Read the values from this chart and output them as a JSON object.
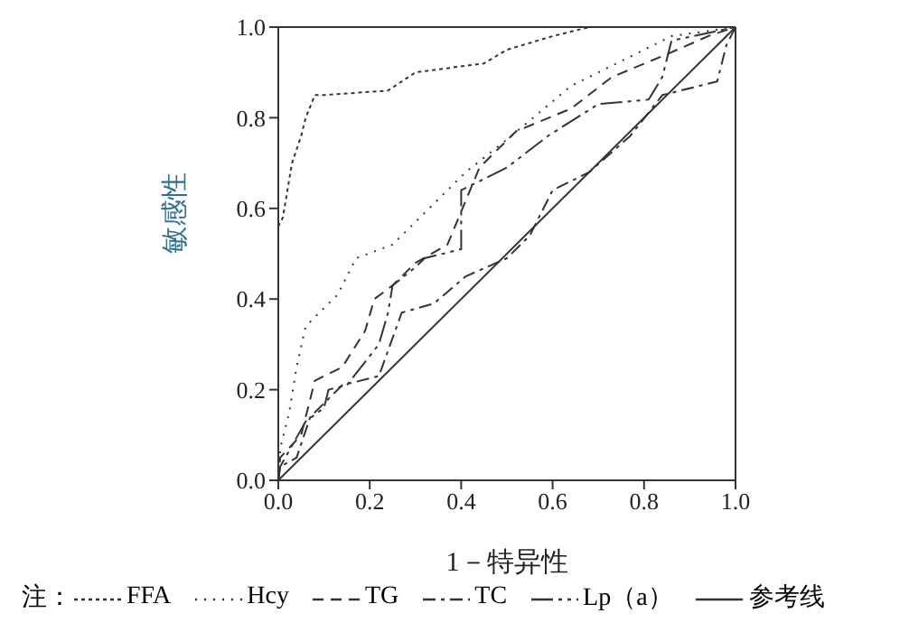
{
  "chart_data": {
    "type": "line",
    "xlabel": "1－特异性",
    "ylabel": "敏感性",
    "xlim": [
      0,
      1
    ],
    "ylim": [
      0,
      1
    ],
    "xticks": [
      {
        "value": 0,
        "label": "0.0"
      },
      {
        "value": 0.2,
        "label": "0.2"
      },
      {
        "value": 0.4,
        "label": "0.4"
      },
      {
        "value": 0.6,
        "label": "0.6"
      },
      {
        "value": 0.8,
        "label": "0.8"
      },
      {
        "value": 1,
        "label": "1.0"
      }
    ],
    "yticks": [
      {
        "value": 0,
        "label": "0.0"
      },
      {
        "value": 0.2,
        "label": "0.2"
      },
      {
        "value": 0.4,
        "label": "0.4"
      },
      {
        "value": 0.6,
        "label": "0.6"
      },
      {
        "value": 0.8,
        "label": "0.8"
      },
      {
        "value": 1,
        "label": "1.0"
      }
    ],
    "grid": false,
    "legend": "bottom",
    "marker": "none",
    "annotations": [
      "注："
    ],
    "series": [
      {
        "name": "FFA",
        "color": "#333333",
        "line_style": "dotted",
        "x": [
          0,
          0.01,
          0.02,
          0.03,
          0.05,
          0.06,
          0.08,
          0.1,
          0.24,
          0.3,
          0.45,
          0.5,
          0.6,
          0.68,
          1
        ],
        "values": [
          0.56,
          0.58,
          0.64,
          0.7,
          0.76,
          0.8,
          0.85,
          0.85,
          0.86,
          0.9,
          0.92,
          0.95,
          0.98,
          1,
          1
        ]
      },
      {
        "name": "Hcy",
        "color": "#333333",
        "line_style": "dotted",
        "x": [
          0,
          0.004,
          0.024,
          0.04,
          0.06,
          0.13,
          0.17,
          0.25,
          0.41,
          0.51,
          0.64,
          0.76,
          0.86,
          1
        ],
        "values": [
          0,
          0.07,
          0.15,
          0.25,
          0.34,
          0.41,
          0.49,
          0.52,
          0.68,
          0.76,
          0.87,
          0.93,
          0.98,
          1
        ]
      },
      {
        "name": "TG",
        "color": "#333333",
        "line_style": "dashed",
        "x": [
          0,
          0.004,
          0.05,
          0.07,
          0.08,
          0.14,
          0.19,
          0.21,
          0.25,
          0.3,
          0.37,
          0.44,
          0.52,
          0.64,
          0.73,
          0.85,
          0.94,
          1
        ],
        "values": [
          0,
          0.05,
          0.1,
          0.18,
          0.22,
          0.25,
          0.33,
          0.4,
          0.43,
          0.48,
          0.52,
          0.69,
          0.77,
          0.82,
          0.89,
          0.94,
          0.98,
          1
        ]
      },
      {
        "name": "TC",
        "color": "#333333",
        "line_style": "dashed",
        "x": [
          0,
          0.004,
          0.04,
          0.07,
          0.14,
          0.22,
          0.27,
          0.34,
          0.41,
          0.5,
          0.55,
          0.6,
          0.68,
          0.77,
          0.84,
          0.96,
          0.98,
          1
        ],
        "values": [
          0,
          0.03,
          0.05,
          0.14,
          0.21,
          0.23,
          0.37,
          0.39,
          0.45,
          0.49,
          0.54,
          0.64,
          0.68,
          0.76,
          0.85,
          0.88,
          0.96,
          1
        ]
      },
      {
        "name": "Lp（a）",
        "color": "#333333",
        "line_style": "dashed",
        "x": [
          0,
          0.004,
          0.06,
          0.1,
          0.11,
          0.15,
          0.22,
          0.24,
          0.25,
          0.3,
          0.32,
          0.4,
          0.4,
          0.5,
          0.59,
          0.7,
          0.81,
          0.84,
          0.86,
          1
        ],
        "values": [
          0,
          0.03,
          0.13,
          0.16,
          0.2,
          0.21,
          0.3,
          0.37,
          0.43,
          0.47,
          0.49,
          0.51,
          0.64,
          0.69,
          0.76,
          0.83,
          0.84,
          0.89,
          0.97,
          1
        ]
      },
      {
        "name": "参考线",
        "color": "#333333",
        "line_style": "solid",
        "x": [
          0,
          1
        ],
        "values": [
          0,
          1
        ]
      }
    ]
  }
}
